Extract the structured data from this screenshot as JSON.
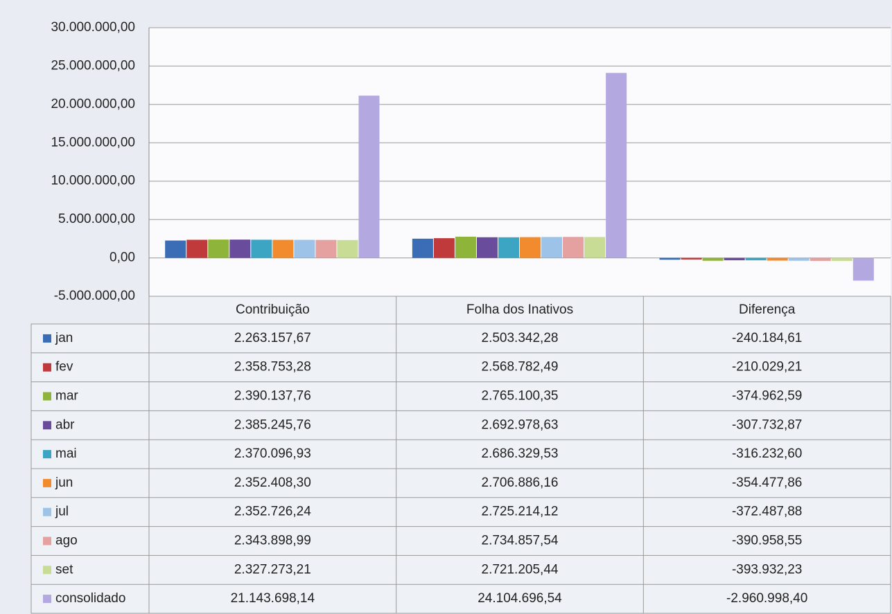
{
  "chart_data": {
    "type": "bar",
    "categories": [
      "Contribuição",
      "Folha dos Inativos",
      "Diferença"
    ],
    "ylim": [
      -5000000,
      30000000
    ],
    "yticks": [
      {
        "value": -5000000,
        "label": "-5.000.000,00"
      },
      {
        "value": 0,
        "label": "0,00"
      },
      {
        "value": 5000000,
        "label": "5.000.000,00"
      },
      {
        "value": 10000000,
        "label": "10.000.000,00"
      },
      {
        "value": 15000000,
        "label": "15.000.000,00"
      },
      {
        "value": 20000000,
        "label": "20.000.000,00"
      },
      {
        "value": 25000000,
        "label": "25.000.000,00"
      },
      {
        "value": 30000000,
        "label": "30.000.000,00"
      }
    ],
    "grid": true,
    "series": [
      {
        "name": "jan",
        "color": "#3a6db5",
        "values": [
          2263157.67,
          2503342.28,
          -240184.61
        ],
        "value_labels": [
          "2.263.157,67",
          "2.503.342,28",
          "-240.184,61"
        ]
      },
      {
        "name": "fev",
        "color": "#c0393b",
        "values": [
          2358753.28,
          2568782.49,
          -210029.21
        ],
        "value_labels": [
          "2.358.753,28",
          "2.568.782,49",
          "-210.029,21"
        ]
      },
      {
        "name": "mar",
        "color": "#8fb43a",
        "values": [
          2390137.76,
          2765100.35,
          -374962.59
        ],
        "value_labels": [
          "2.390.137,76",
          "2.765.100,35",
          "-374.962,59"
        ]
      },
      {
        "name": "abr",
        "color": "#6a4c9c",
        "values": [
          2385245.76,
          2692978.63,
          -307732.87
        ],
        "value_labels": [
          "2.385.245,76",
          "2.692.978,63",
          "-307.732,87"
        ]
      },
      {
        "name": "mai",
        "color": "#3da5c4",
        "values": [
          2370096.93,
          2686329.53,
          -316232.6
        ],
        "value_labels": [
          "2.370.096,93",
          "2.686.329,53",
          "-316.232,60"
        ]
      },
      {
        "name": "jun",
        "color": "#f28a2e",
        "values": [
          2352408.3,
          2706886.16,
          -354477.86
        ],
        "value_labels": [
          "2.352.408,30",
          "2.706.886,16",
          "-354.477,86"
        ]
      },
      {
        "name": "jul",
        "color": "#9ec3e8",
        "values": [
          2352726.24,
          2725214.12,
          -372487.88
        ],
        "value_labels": [
          "2.352.726,24",
          "2.725.214,12",
          "-372.487,88"
        ]
      },
      {
        "name": "ago",
        "color": "#e5a0a0",
        "values": [
          2343898.99,
          2734857.54,
          -390958.55
        ],
        "value_labels": [
          "2.343.898,99",
          "2.734.857,54",
          "-390.958,55"
        ]
      },
      {
        "name": "set",
        "color": "#c8dc96",
        "values": [
          2327273.21,
          2721205.44,
          -393932.23
        ],
        "value_labels": [
          "2.327.273,21",
          "2.721.205,44",
          "-393.932,23"
        ]
      },
      {
        "name": "consolidado",
        "color": "#b3a8e0",
        "values": [
          21143698.14,
          24104696.54,
          -2960998.4
        ],
        "value_labels": [
          "21.143.698,14",
          "24.104.696,54",
          "-2.960.998,40"
        ]
      }
    ]
  }
}
